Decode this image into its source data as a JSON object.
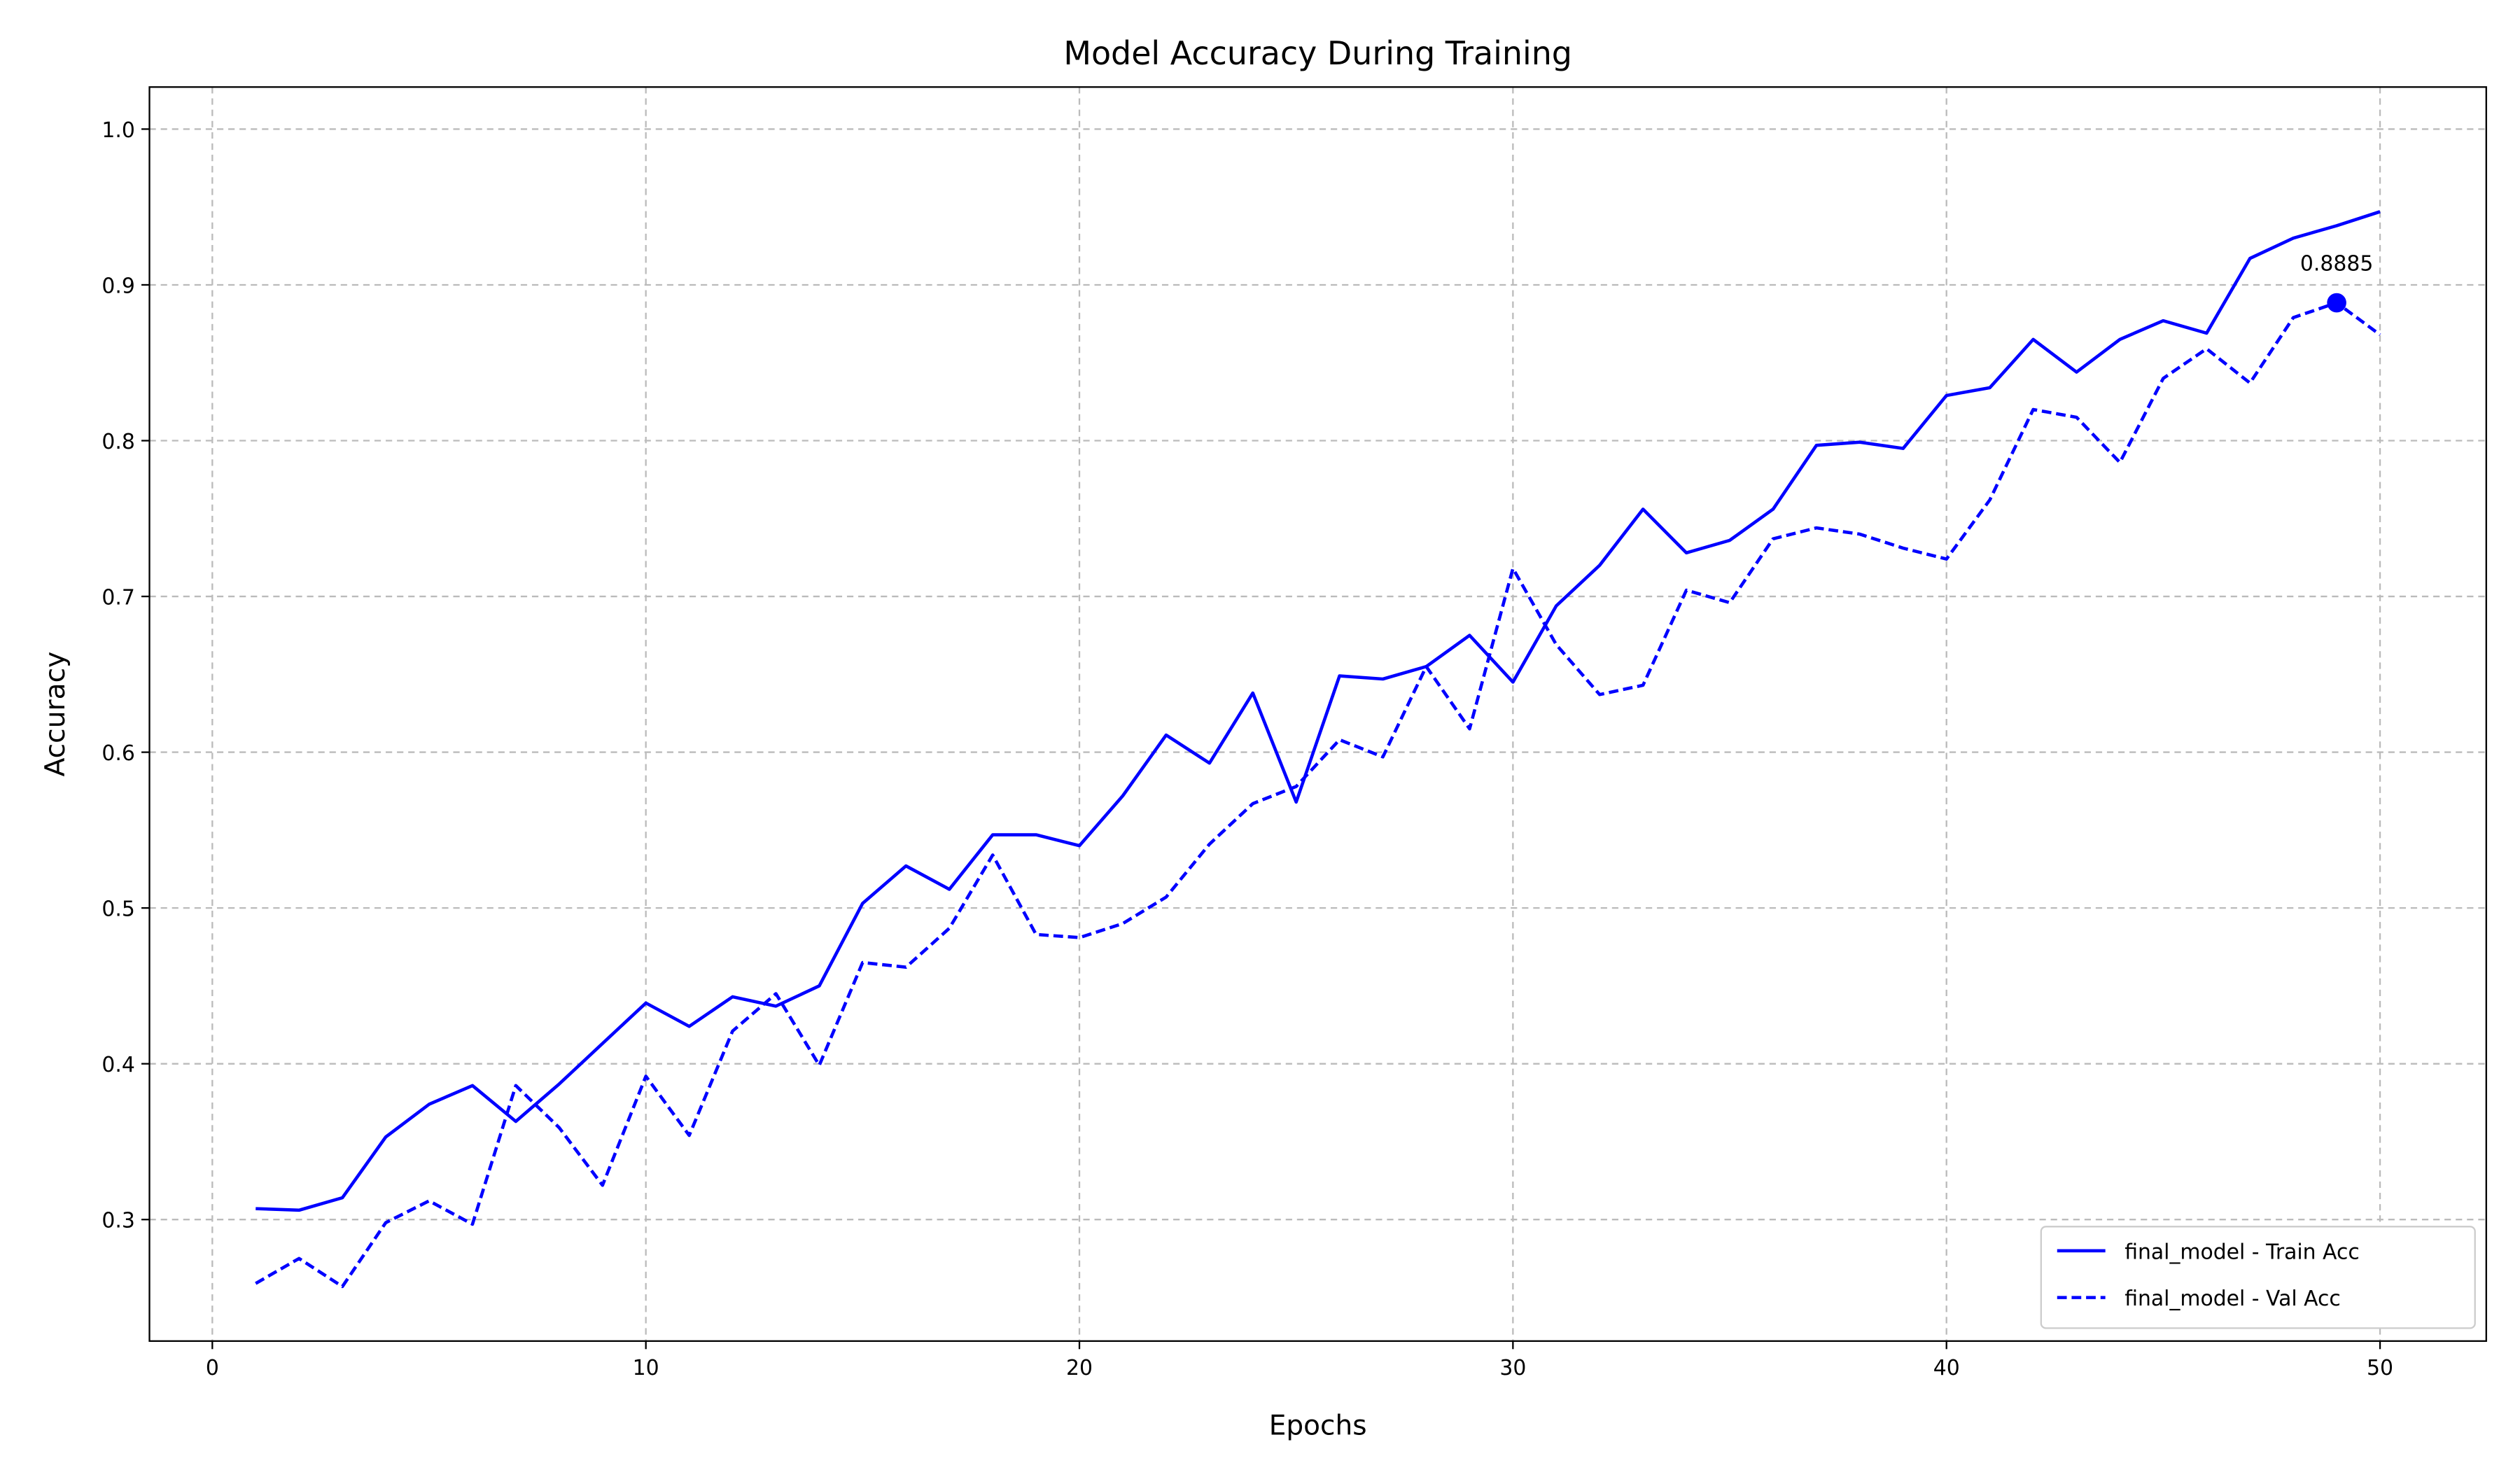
{
  "chart_data": {
    "type": "line",
    "title": "Model Accuracy During Training",
    "xlabel": "Epochs",
    "ylabel": "Accuracy",
    "xlim": [
      -1.45,
      52.45
    ],
    "ylim": [
      0.222,
      1.027
    ],
    "xticks": [
      0,
      10,
      20,
      30,
      40,
      50
    ],
    "yticks": [
      0.3,
      0.4,
      0.5,
      0.6,
      0.7,
      0.8,
      0.9,
      1.0
    ],
    "ytick_labels": [
      "0.3",
      "0.4",
      "0.5",
      "0.6",
      "0.7",
      "0.8",
      "0.9",
      "1.0"
    ],
    "grid": true,
    "legend_placement": "lower-right",
    "x": [
      1,
      2,
      3,
      4,
      5,
      6,
      7,
      8,
      9,
      10,
      11,
      12,
      13,
      14,
      15,
      16,
      17,
      18,
      19,
      20,
      21,
      22,
      23,
      24,
      25,
      26,
      27,
      28,
      29,
      30,
      31,
      32,
      33,
      34,
      35,
      36,
      37,
      38,
      39,
      40,
      41,
      42,
      43,
      44,
      45,
      46,
      47,
      48,
      49,
      50
    ],
    "series": [
      {
        "name": "final_model - Train Acc",
        "color": "#0000ff",
        "style": "solid",
        "values": [
          0.307,
          0.306,
          0.314,
          0.353,
          0.374,
          0.386,
          0.363,
          0.387,
          0.413,
          0.439,
          0.424,
          0.443,
          0.437,
          0.45,
          0.503,
          0.527,
          0.512,
          0.547,
          0.547,
          0.54,
          0.572,
          0.611,
          0.593,
          0.638,
          0.568,
          0.649,
          0.647,
          0.655,
          0.675,
          0.645,
          0.694,
          0.72,
          0.756,
          0.728,
          0.736,
          0.756,
          0.797,
          0.799,
          0.795,
          0.829,
          0.834,
          0.865,
          0.844,
          0.865,
          0.877,
          0.869,
          0.917,
          0.93,
          0.938,
          0.947
        ]
      },
      {
        "name": "final_model - Val Acc",
        "color": "#0000ff",
        "style": "dashed",
        "values": [
          0.259,
          0.275,
          0.257,
          0.298,
          0.312,
          0.297,
          0.386,
          0.359,
          0.322,
          0.392,
          0.354,
          0.421,
          0.445,
          0.399,
          0.465,
          0.462,
          0.487,
          0.534,
          0.483,
          0.481,
          0.49,
          0.507,
          0.541,
          0.567,
          0.578,
          0.608,
          0.597,
          0.655,
          0.615,
          0.718,
          0.669,
          0.637,
          0.643,
          0.704,
          0.696,
          0.737,
          0.744,
          0.74,
          0.731,
          0.724,
          0.762,
          0.82,
          0.815,
          0.786,
          0.84,
          0.859,
          0.837,
          0.879,
          0.8885,
          0.868
        ]
      }
    ],
    "annotation": {
      "x": 49,
      "y": 0.8885,
      "text": "0.8885"
    }
  }
}
